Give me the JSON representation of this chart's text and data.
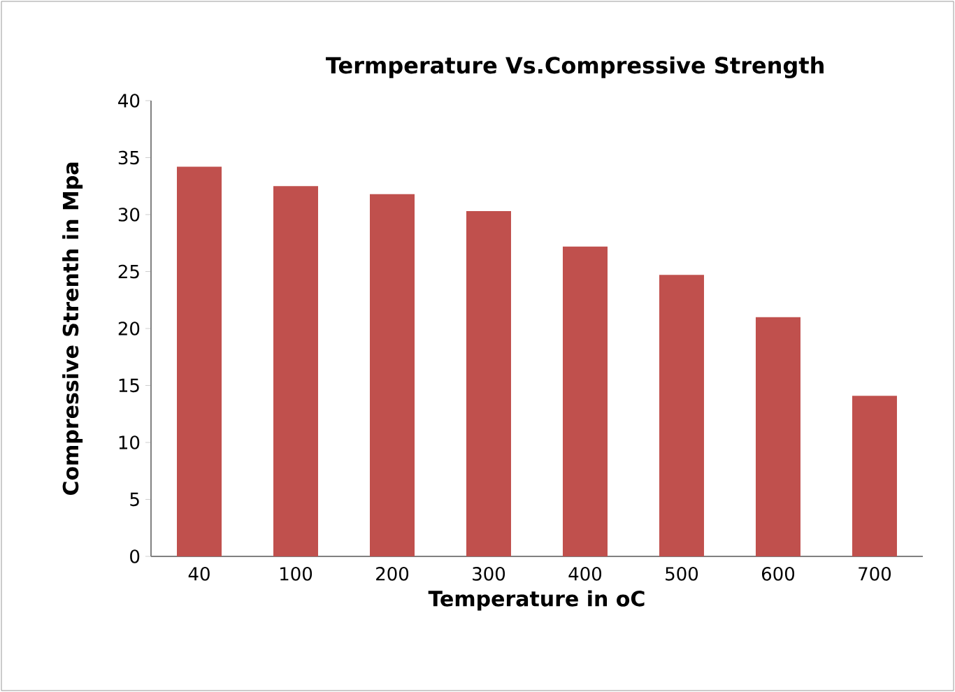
{
  "chart_data": {
    "type": "bar",
    "title": "Termperature Vs.Compressive Strength",
    "xlabel": "Temperature in oC",
    "ylabel": "Compressive Strenth in Mpa",
    "categories": [
      "40",
      "100",
      "200",
      "300",
      "400",
      "500",
      "600",
      "700"
    ],
    "values": [
      34.2,
      32.5,
      31.8,
      30.3,
      27.2,
      24.7,
      21.0,
      14.1
    ],
    "color": "#c0504d",
    "ylim": [
      0,
      40
    ],
    "yticks": [
      0,
      5,
      10,
      15,
      20,
      25,
      30,
      35,
      40
    ],
    "grid": false
  }
}
